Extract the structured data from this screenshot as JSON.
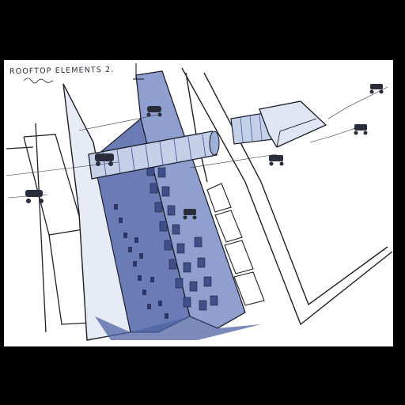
{
  "artwork": {
    "caption": "ROOFTOP ELEMENTS 2.",
    "signature": "signature",
    "colors": {
      "paper": "#ffffff",
      "ink": "#1d1f2b",
      "blue_wash": "#5f74b0",
      "light_blue": "#a9b7dc",
      "deep_blue": "#3f4f8c",
      "frame": "#000000"
    }
  }
}
